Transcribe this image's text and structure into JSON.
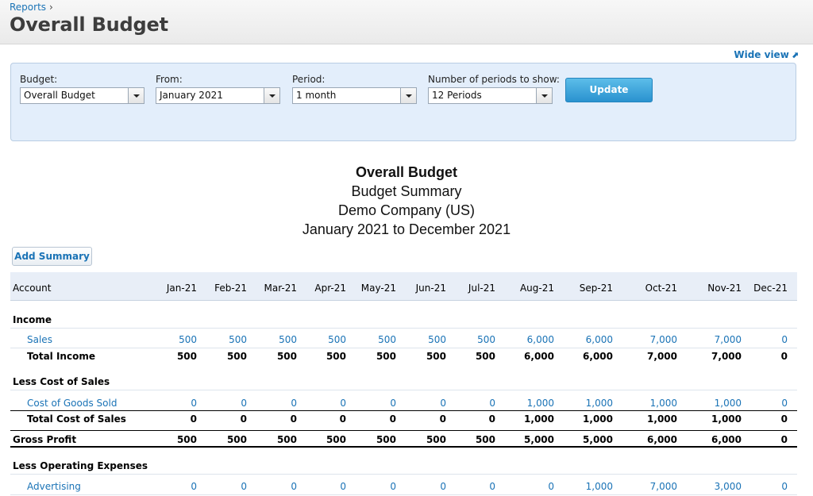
{
  "header": {
    "breadcrumb": "Reports",
    "breadcrumb_sep": "›",
    "title": "Overall Budget"
  },
  "wide_view_label": "Wide view",
  "filters": {
    "budget": {
      "label": "Budget:",
      "value": "Overall Budget"
    },
    "from": {
      "label": "From:",
      "value": "January 2021"
    },
    "period": {
      "label": "Period:",
      "value": "1 month"
    },
    "periods": {
      "label": "Number of periods to show:",
      "value": "12 Periods"
    },
    "update_label": "Update"
  },
  "report": {
    "title": "Overall Budget",
    "subtitle": "Budget Summary",
    "company": "Demo Company (US)",
    "range": "January 2021 to December 2021"
  },
  "add_summary_label": "Add Summary",
  "table": {
    "account_header": "Account",
    "months": [
      "Jan-21",
      "Feb-21",
      "Mar-21",
      "Apr-21",
      "May-21",
      "Jun-21",
      "Jul-21",
      "Aug-21",
      "Sep-21",
      "Oct-21",
      "Nov-21",
      "Dec-21"
    ],
    "income": {
      "label": "Income",
      "sales": {
        "label": "Sales",
        "values": [
          "500",
          "500",
          "500",
          "500",
          "500",
          "500",
          "500",
          "6,000",
          "6,000",
          "7,000",
          "7,000",
          "0"
        ]
      },
      "total": {
        "label": "Total Income",
        "values": [
          "500",
          "500",
          "500",
          "500",
          "500",
          "500",
          "500",
          "6,000",
          "6,000",
          "7,000",
          "7,000",
          "0"
        ]
      }
    },
    "cost_of_sales": {
      "label": "Less Cost of Sales",
      "cogs": {
        "label": "Cost of Goods Sold",
        "values": [
          "0",
          "0",
          "0",
          "0",
          "0",
          "0",
          "0",
          "1,000",
          "1,000",
          "1,000",
          "1,000",
          "0"
        ]
      },
      "total": {
        "label": "Total Cost of Sales",
        "values": [
          "0",
          "0",
          "0",
          "0",
          "0",
          "0",
          "0",
          "1,000",
          "1,000",
          "1,000",
          "1,000",
          "0"
        ]
      }
    },
    "gross_profit": {
      "label": "Gross Profit",
      "values": [
        "500",
        "500",
        "500",
        "500",
        "500",
        "500",
        "500",
        "5,000",
        "5,000",
        "6,000",
        "6,000",
        "0"
      ]
    },
    "operating_expenses": {
      "label": "Less Operating Expenses",
      "advertising": {
        "label": "Advertising",
        "values": [
          "0",
          "0",
          "0",
          "0",
          "0",
          "0",
          "0",
          "0",
          "1,000",
          "7,000",
          "3,000",
          "0"
        ]
      }
    }
  }
}
